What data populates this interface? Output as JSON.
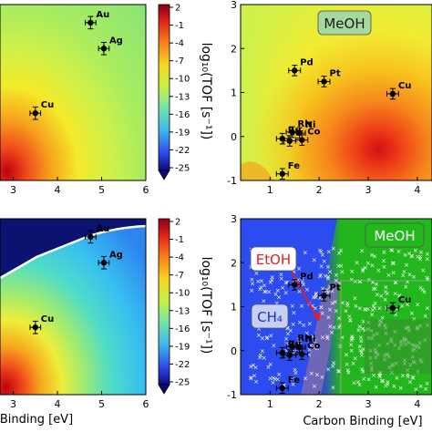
{
  "chart_data": [
    {
      "type": "heatmap",
      "panel": "top-left",
      "x_ticks": [
        "3",
        "4",
        "5",
        "6"
      ],
      "points": [
        {
          "label": "Au",
          "x": 4.75,
          "y": 1.05,
          "xerr": 0.12,
          "yerr": 0.12
        },
        {
          "label": "Ag",
          "x": 5.05,
          "y": 0.55,
          "xerr": 0.12,
          "yerr": 0.12
        },
        {
          "label": "Cu",
          "x": 3.5,
          "y": -0.7,
          "xerr": 0.12,
          "yerr": 0.12
        }
      ],
      "colorbar": {
        "label": "log₁₀(TOF [s⁻¹])",
        "ticks": [
          "2",
          "-1",
          "-4",
          "-7",
          "-10",
          "-13",
          "-16",
          "-19",
          "-22",
          "-25"
        ]
      }
    },
    {
      "type": "heatmap",
      "panel": "top-right",
      "annotation": "MeOH",
      "x_ticks": [
        "1",
        "2",
        "3",
        "4"
      ],
      "y_ticks": [
        "3",
        "2",
        "1",
        "0",
        "-1"
      ],
      "ylim": [
        -1,
        3
      ],
      "points": [
        {
          "label": "Pd",
          "x": 1.5,
          "y": 1.5,
          "xerr": 0.12,
          "yerr": 0.12
        },
        {
          "label": "Pt",
          "x": 2.1,
          "y": 1.25,
          "xerr": 0.12,
          "yerr": 0.12
        },
        {
          "label": "Cu",
          "x": 3.5,
          "y": 0.97,
          "xerr": 0.12,
          "yerr": 0.12
        },
        {
          "label": "Rh",
          "x": 1.45,
          "y": 0.1,
          "xerr": 0.12,
          "yerr": 0.12
        },
        {
          "label": "Ni",
          "x": 1.6,
          "y": 0.08,
          "xerr": 0.12,
          "yerr": 0.12
        },
        {
          "label": "Ir",
          "x": 1.4,
          "y": -0.1,
          "xerr": 0.12,
          "yerr": 0.12
        },
        {
          "label": "Co",
          "x": 1.65,
          "y": -0.08,
          "xerr": 0.12,
          "yerr": 0.12
        },
        {
          "label": "Ru",
          "x": 1.25,
          "y": -0.05,
          "xerr": 0.12,
          "yerr": 0.12
        },
        {
          "label": "Fe",
          "x": 1.25,
          "y": -0.85,
          "xerr": 0.12,
          "yerr": 0.12
        }
      ]
    },
    {
      "type": "heatmap",
      "panel": "bottom-left",
      "x_ticks": [
        "3",
        "4",
        "5",
        "6"
      ],
      "xlabel_partial": "Binding [eV]",
      "points": [
        {
          "label": "Au",
          "x": 4.75,
          "y": 1.05,
          "xerr": 0.12,
          "yerr": 0.12
        },
        {
          "label": "Ag",
          "x": 5.05,
          "y": 0.55,
          "xerr": 0.12,
          "yerr": 0.12
        },
        {
          "label": "Cu",
          "x": 3.5,
          "y": -0.7,
          "xerr": 0.12,
          "yerr": 0.12
        }
      ],
      "colorbar": {
        "label": "log₁₀(TOF [s⁻¹])",
        "ticks": [
          "2",
          "-1",
          "-4",
          "-7",
          "-10",
          "-13",
          "-16",
          "-19",
          "-22",
          "-25"
        ]
      }
    },
    {
      "type": "scatter",
      "panel": "bottom-right",
      "regions": [
        "MeOH",
        "EtOH",
        "CH₄"
      ],
      "x_ticks": [
        "1",
        "2",
        "3",
        "4"
      ],
      "y_ticks": [
        "3",
        "2",
        "1",
        "0",
        "-1"
      ],
      "xlabel": "Carbon Binding [eV]",
      "ylim": [
        -1,
        3
      ],
      "points": [
        {
          "label": "Pd",
          "x": 1.5,
          "y": 1.5
        },
        {
          "label": "Pt",
          "x": 2.1,
          "y": 1.25
        },
        {
          "label": "Cu",
          "x": 3.5,
          "y": 0.97
        },
        {
          "label": "Rh",
          "x": 1.45,
          "y": 0.1
        },
        {
          "label": "Ni",
          "x": 1.6,
          "y": 0.08
        },
        {
          "label": "Ir",
          "x": 1.4,
          "y": -0.1
        },
        {
          "label": "Co",
          "x": 1.65,
          "y": -0.08
        },
        {
          "label": "Ru",
          "x": 1.25,
          "y": -0.05
        },
        {
          "label": "Fe",
          "x": 1.25,
          "y": -0.85
        }
      ]
    }
  ],
  "colors": {
    "dark_red": "#b2001a",
    "red": "#e8281e",
    "orange": "#f79a1e",
    "yellow": "#f6ec2a",
    "light_green": "#b8f05a",
    "cyan": "#40dcd6",
    "blue": "#2a66f0",
    "navy": "#0b1370",
    "region_blue": "#2d4cf0",
    "region_green": "#21b81c"
  }
}
